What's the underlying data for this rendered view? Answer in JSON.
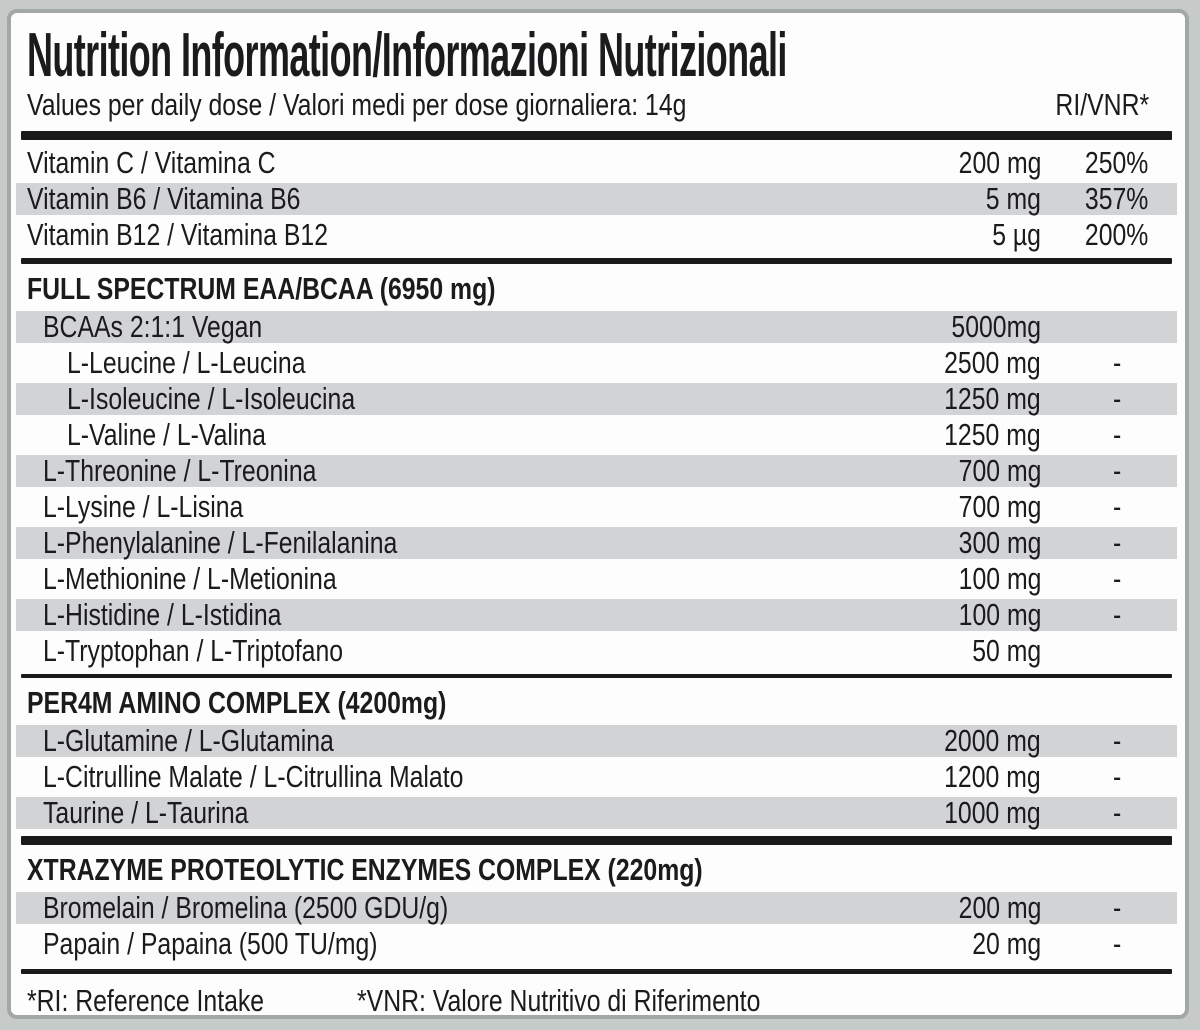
{
  "label": {
    "title": "Nutrition Information/Informazioni Nutrizionali",
    "subtitle": "Values per daily dose / Valori medi per dose giornaliera: 14g",
    "ri_header": "RI/VNR*",
    "footnote_ri": "*RI: Reference Intake",
    "footnote_vnr": "*VNR: Valore Nutritivo di Riferimento"
  },
  "colors": {
    "outer_bg": "#c6cac9",
    "card_bg": "#fdfdfd",
    "border": "#a2a7a7",
    "band_gray": "#d2d3d5",
    "rule": "#1a1a1a",
    "text": "#1b1b1d"
  },
  "table": {
    "sections": [
      {
        "header": null,
        "divider": "heavy",
        "rows": [
          {
            "name": "Vitamin C / Vitamina C",
            "amount": "200 mg",
            "ri": "250%",
            "indent": 0,
            "shaded": false
          },
          {
            "name": "Vitamin B6 / Vitamina B6",
            "amount": "5 mg",
            "ri": "357%",
            "indent": 0,
            "shaded": true
          },
          {
            "name": "Vitamin B12 / Vitamina B12",
            "amount": "5 µg",
            "ri": "200%",
            "indent": 0,
            "shaded": false
          }
        ]
      },
      {
        "header": "FULL SPECTRUM EAA/BCAA (6950 mg)",
        "divider": "medium",
        "rows": [
          {
            "name": "BCAAs 2:1:1 Vegan",
            "amount": "5000mg",
            "ri": "",
            "indent": 1,
            "shaded": true
          },
          {
            "name": "L-Leucine / L-Leucina",
            "amount": "2500 mg",
            "ri": "-",
            "indent": 2,
            "shaded": false
          },
          {
            "name": "L-Isoleucine / L-Isoleucina",
            "amount": "1250 mg",
            "ri": "-",
            "indent": 2,
            "shaded": true
          },
          {
            "name": "L-Valine / L-Valina",
            "amount": "1250 mg",
            "ri": "-",
            "indent": 2,
            "shaded": false
          },
          {
            "name": "L-Threonine / L-Treonina",
            "amount": "700 mg",
            "ri": "-",
            "indent": 1,
            "shaded": true
          },
          {
            "name": "L-Lysine / L-Lisina",
            "amount": "700 mg",
            "ri": "-",
            "indent": 1,
            "shaded": false
          },
          {
            "name": "L-Phenylalanine / L-Fenilalanina",
            "amount": "300 mg",
            "ri": "-",
            "indent": 1,
            "shaded": true
          },
          {
            "name": "L-Methionine / L-Metionina",
            "amount": "100 mg",
            "ri": "-",
            "indent": 1,
            "shaded": false
          },
          {
            "name": "L-Histidine / L-Istidina",
            "amount": "100 mg",
            "ri": "-",
            "indent": 1,
            "shaded": true
          },
          {
            "name": "L-Tryptophan / L-Triptofano",
            "amount": "50 mg",
            "ri": "-",
            "indent": 1,
            "shaded": false,
            "ri_far": true
          }
        ]
      },
      {
        "header": "PER4M AMINO COMPLEX (4200mg)",
        "divider": "light",
        "rows": [
          {
            "name": "L-Glutamine / L-Glutamina",
            "amount": "2000 mg",
            "ri": "-",
            "indent": 1,
            "shaded": true
          },
          {
            "name": "L-Citrulline Malate / L-Citrullina Malato",
            "amount": "1200 mg",
            "ri": "-",
            "indent": 1,
            "shaded": false
          },
          {
            "name": "Taurine / L-Taurina",
            "amount": "1000 mg",
            "ri": "-",
            "indent": 1,
            "shaded": true
          }
        ]
      },
      {
        "header": "XTRAZYME PROTEOLYTIC ENZYMES COMPLEX (220mg)",
        "divider": "heavy",
        "rows": [
          {
            "name": "Bromelain / Bromelina (2500 GDU/g)",
            "amount": "200 mg",
            "ri": "-",
            "indent": 1,
            "shaded": true
          },
          {
            "name": "Papain / Papaina (500 TU/mg)",
            "amount": "20 mg",
            "ri": "-",
            "indent": 1,
            "shaded": false
          }
        ]
      }
    ]
  }
}
